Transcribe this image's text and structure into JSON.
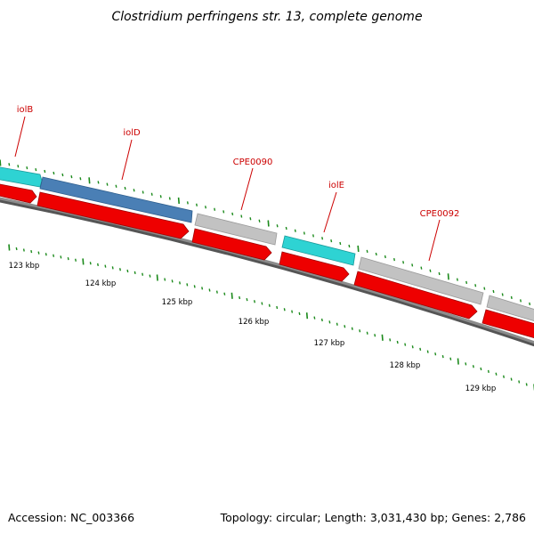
{
  "title": "Clostridium perfringens str. 13, complete genome",
  "accession": "Accession: NC_003366",
  "summary": "Topology: circular; Length: 3,031,430 bp; Genes: 2,786",
  "colors": {
    "cyan": "#2ed3d3",
    "blue": "#4a7fb5",
    "grey": "#c2c2c2",
    "red": "#ee0000",
    "backbone": "#777777",
    "tick": "#1b8a1b",
    "label": "#cc0000"
  },
  "features": [
    {
      "name": "iolB",
      "label": "iolB"
    },
    {
      "name": "iolD",
      "label": "iolD"
    },
    {
      "name": "CPE0090",
      "label": "CPE0090"
    },
    {
      "name": "iolE",
      "label": "iolE"
    },
    {
      "name": "CPE0092",
      "label": "CPE0092"
    }
  ],
  "scale_labels": [
    "123 kbp",
    "124 kbp",
    "125 kbp",
    "126 kbp",
    "127 kbp",
    "128 kbp",
    "129 kbp"
  ]
}
